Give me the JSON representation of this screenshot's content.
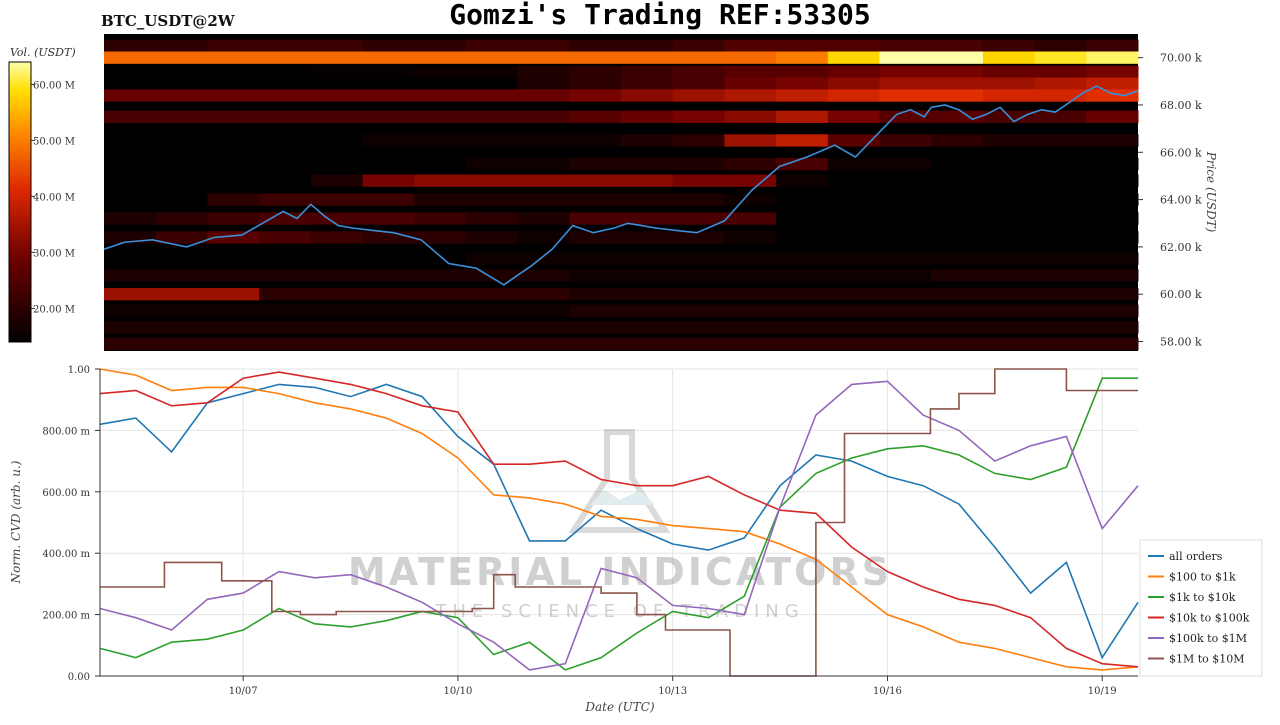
{
  "page": {
    "title": "Gomzi's Trading REF:53305",
    "symbol": "BTC_USDT@2W"
  },
  "watermark": {
    "brand": "MATERIAL INDICATORS",
    "tagline": "THE SCIENCE OF TRADING"
  },
  "colors": {
    "all_orders": "#1f77b4",
    "s100_1k": "#ff7f0e",
    "s1k_10k": "#2ca02c",
    "s10k_100k": "#d62728",
    "s100k_1m": "#9467bd",
    "s1m_10m": "#8c564b",
    "price_line": "#3a8fd8"
  },
  "chart_data": [
    {
      "type": "heatmap",
      "colorbar_label": "Vol. (USDT)",
      "colorbar_ticks": [
        "60.00 M",
        "50.00 M",
        "40.00 M",
        "30.00 M",
        "20.00 M"
      ],
      "colorbar_values": [
        60,
        50,
        40,
        30,
        20
      ],
      "colorbar_range": [
        14,
        64
      ],
      "ylabel": "Price (USDT)",
      "y_ticks": [
        "70.00 k",
        "68.00 k",
        "66.00 k",
        "64.00 k",
        "62.00 k",
        "60.00 k",
        "58.00 k"
      ],
      "y_tick_values": [
        70000,
        68000,
        66000,
        64000,
        62000,
        60000,
        58000
      ],
      "ylim": [
        57600,
        71000
      ],
      "xlim_days": [
        0,
        15
      ],
      "price_series": {
        "name": "price",
        "x_days": [
          0,
          0.3,
          0.7,
          1.2,
          1.6,
          2.0,
          2.3,
          2.6,
          2.8,
          3.0,
          3.2,
          3.4,
          3.6,
          3.9,
          4.2,
          4.6,
          5.0,
          5.4,
          5.8,
          6.2,
          6.5,
          6.8,
          7.1,
          7.4,
          7.6,
          7.8,
          8.0,
          8.3,
          8.6,
          9.0,
          9.4,
          9.8,
          10.2,
          10.6,
          10.9,
          11.1,
          11.3,
          11.5,
          11.7,
          11.9,
          12.0,
          12.2,
          12.4,
          12.6,
          12.8,
          13.0,
          13.2,
          13.4,
          13.6,
          13.8,
          14.0,
          14.2,
          14.4,
          14.6,
          14.8,
          15.0
        ],
        "price": [
          61900,
          62200,
          62300,
          62000,
          62400,
          62500,
          63000,
          63500,
          63200,
          63800,
          63300,
          62900,
          62800,
          62700,
          62600,
          62300,
          61300,
          61100,
          60400,
          61200,
          61900,
          62900,
          62600,
          62800,
          63000,
          62900,
          62800,
          62700,
          62600,
          63100,
          64400,
          65400,
          65800,
          66300,
          65800,
          66400,
          67000,
          67600,
          67800,
          67500,
          67900,
          68000,
          67800,
          67400,
          67600,
          67900,
          67300,
          67600,
          67800,
          67700,
          68100,
          68500,
          68800,
          68500,
          68400,
          68600
        ]
      },
      "bands": [
        {
          "price": 70500,
          "values": [
            20,
            20,
            22,
            22,
            22,
            20,
            20,
            22,
            22,
            20,
            20,
            22,
            25,
            25,
            25,
            24,
            24,
            22,
            20,
            22
          ]
        },
        {
          "price": 70000,
          "values": [
            48,
            48,
            48,
            48,
            48,
            48,
            48,
            48,
            48,
            48,
            48,
            48,
            48,
            50,
            58,
            64,
            64,
            58,
            60,
            62
          ]
        },
        {
          "price": 69400,
          "values": [
            14,
            14,
            14,
            14,
            15,
            15,
            16,
            16,
            18,
            20,
            22,
            24,
            26,
            26,
            28,
            30,
            30,
            28,
            28,
            30
          ]
        },
        {
          "price": 68900,
          "values": [
            14,
            14,
            14,
            14,
            14,
            14,
            14,
            14,
            18,
            20,
            22,
            24,
            28,
            30,
            32,
            34,
            34,
            34,
            36,
            38
          ]
        },
        {
          "price": 68400,
          "values": [
            28,
            28,
            28,
            28,
            28,
            28,
            28,
            28,
            28,
            30,
            32,
            34,
            36,
            38,
            40,
            42,
            42,
            40,
            40,
            42
          ]
        },
        {
          "price": 67500,
          "values": [
            24,
            24,
            24,
            24,
            24,
            24,
            24,
            24,
            24,
            26,
            28,
            30,
            32,
            36,
            30,
            26,
            26,
            24,
            24,
            28
          ]
        },
        {
          "price": 66500,
          "values": [
            14,
            14,
            14,
            14,
            14,
            16,
            16,
            16,
            16,
            16,
            18,
            20,
            34,
            38,
            26,
            22,
            20,
            18,
            18,
            18
          ]
        },
        {
          "price": 65500,
          "values": [
            14,
            14,
            14,
            14,
            14,
            14,
            14,
            16,
            16,
            18,
            18,
            18,
            20,
            24,
            16,
            16,
            14,
            14,
            14,
            14
          ]
        },
        {
          "price": 64800,
          "values": [
            14,
            14,
            14,
            14,
            18,
            30,
            32,
            32,
            32,
            32,
            32,
            30,
            30,
            16,
            14,
            14,
            14,
            14,
            14,
            14
          ]
        },
        {
          "price": 64000,
          "values": [
            14,
            14,
            20,
            22,
            22,
            22,
            18,
            18,
            18,
            18,
            18,
            18,
            16,
            14,
            14,
            14,
            14,
            14,
            14,
            14
          ]
        },
        {
          "price": 63200,
          "values": [
            18,
            20,
            22,
            24,
            24,
            24,
            22,
            20,
            18,
            24,
            24,
            24,
            24,
            14,
            14,
            14,
            14,
            14,
            14,
            14
          ]
        },
        {
          "price": 62400,
          "values": [
            18,
            22,
            26,
            24,
            22,
            20,
            20,
            18,
            16,
            18,
            18,
            18,
            16,
            14,
            14,
            14,
            14,
            14,
            14,
            14
          ]
        },
        {
          "price": 61500,
          "values": [
            14,
            14,
            14,
            14,
            14,
            14,
            14,
            16,
            16,
            16,
            16,
            16,
            16,
            16,
            16,
            16,
            16,
            16,
            16,
            16
          ]
        },
        {
          "price": 60800,
          "values": [
            18,
            18,
            18,
            18,
            18,
            18,
            18,
            18,
            18,
            16,
            16,
            16,
            16,
            16,
            16,
            16,
            18,
            18,
            18,
            18
          ]
        },
        {
          "price": 60000,
          "values": [
            34,
            34,
            34,
            20,
            20,
            20,
            20,
            20,
            20,
            18,
            18,
            18,
            18,
            18,
            18,
            18,
            18,
            18,
            18,
            18
          ]
        },
        {
          "price": 59300,
          "values": [
            16,
            16,
            16,
            16,
            16,
            16,
            16,
            16,
            16,
            18,
            18,
            18,
            18,
            18,
            18,
            18,
            18,
            18,
            18,
            18
          ]
        },
        {
          "price": 58600,
          "values": [
            18,
            18,
            18,
            18,
            18,
            18,
            18,
            18,
            18,
            18,
            18,
            18,
            18,
            18,
            18,
            18,
            18,
            18,
            18,
            18
          ]
        },
        {
          "price": 57900,
          "values": [
            20,
            20,
            20,
            20,
            20,
            20,
            20,
            20,
            20,
            20,
            20,
            20,
            20,
            20,
            20,
            20,
            20,
            20,
            20,
            20
          ]
        }
      ]
    },
    {
      "type": "line",
      "xlabel": "Date (UTC)",
      "ylabel": "Norm. CVD (arb. u.)",
      "x_tick_labels": [
        "10/07",
        "10/10",
        "10/13",
        "10/16",
        "10/19"
      ],
      "x_tick_days": [
        2,
        5,
        8,
        11,
        14
      ],
      "xlim_days": [
        0,
        14.5
      ],
      "y_ticks": [
        "1.00",
        "800.00 m",
        "600.00 m",
        "400.00 m",
        "200.00 m",
        "0.00"
      ],
      "y_tick_values": [
        1.0,
        0.8,
        0.6,
        0.4,
        0.2,
        0.0
      ],
      "ylim": [
        0,
        1.0
      ],
      "grid": true,
      "legend_position": "right-bottom",
      "series": [
        {
          "name": "all orders",
          "color_key": "all_orders",
          "x": [
            0,
            0.5,
            1,
            1.5,
            2,
            2.5,
            3,
            3.5,
            4,
            4.5,
            5,
            5.5,
            6,
            6.5,
            7,
            7.5,
            8,
            8.5,
            9,
            9.5,
            10,
            10.5,
            11,
            11.5,
            12,
            12.5,
            13,
            13.5,
            14,
            14.5
          ],
          "y": [
            0.82,
            0.84,
            0.73,
            0.89,
            0.92,
            0.95,
            0.94,
            0.91,
            0.95,
            0.91,
            0.78,
            0.69,
            0.44,
            0.44,
            0.54,
            0.48,
            0.43,
            0.41,
            0.45,
            0.62,
            0.72,
            0.7,
            0.65,
            0.62,
            0.56,
            0.42,
            0.27,
            0.37,
            0.06,
            0.24
          ]
        },
        {
          "name": "$100 to $1k",
          "color_key": "s100_1k",
          "x": [
            0,
            0.5,
            1,
            1.5,
            2,
            2.5,
            3,
            3.5,
            4,
            4.5,
            5,
            5.5,
            6,
            6.5,
            7,
            7.5,
            8,
            8.5,
            9,
            9.5,
            10,
            10.5,
            11,
            11.5,
            12,
            12.5,
            13,
            13.5,
            14,
            14.5
          ],
          "y": [
            1.0,
            0.98,
            0.93,
            0.94,
            0.94,
            0.92,
            0.89,
            0.87,
            0.84,
            0.79,
            0.71,
            0.59,
            0.58,
            0.56,
            0.52,
            0.51,
            0.49,
            0.48,
            0.47,
            0.43,
            0.38,
            0.29,
            0.2,
            0.16,
            0.11,
            0.09,
            0.06,
            0.03,
            0.02,
            0.03
          ]
        },
        {
          "name": "$1k to $10k",
          "color_key": "s1k_10k",
          "x": [
            0,
            0.5,
            1,
            1.5,
            2,
            2.5,
            3,
            3.5,
            4,
            4.5,
            5,
            5.5,
            6,
            6.5,
            7,
            7.5,
            8,
            8.5,
            9,
            9.5,
            10,
            10.5,
            11,
            11.5,
            12,
            12.5,
            13,
            13.5,
            14,
            14.5
          ],
          "y": [
            0.09,
            0.06,
            0.11,
            0.12,
            0.15,
            0.22,
            0.17,
            0.16,
            0.18,
            0.21,
            0.19,
            0.07,
            0.11,
            0.02,
            0.06,
            0.14,
            0.21,
            0.19,
            0.26,
            0.55,
            0.66,
            0.71,
            0.74,
            0.75,
            0.72,
            0.66,
            0.64,
            0.68,
            0.97,
            0.97
          ]
        },
        {
          "name": "$10k to $100k",
          "color_key": "s10k_100k",
          "x": [
            0,
            0.5,
            1,
            1.5,
            2,
            2.5,
            3,
            3.5,
            4,
            4.5,
            5,
            5.5,
            6,
            6.5,
            7,
            7.5,
            8,
            8.5,
            9,
            9.5,
            10,
            10.5,
            11,
            11.5,
            12,
            12.5,
            13,
            13.5,
            14,
            14.5
          ],
          "y": [
            0.92,
            0.93,
            0.88,
            0.89,
            0.97,
            0.99,
            0.97,
            0.95,
            0.92,
            0.88,
            0.86,
            0.69,
            0.69,
            0.7,
            0.64,
            0.62,
            0.62,
            0.65,
            0.59,
            0.54,
            0.53,
            0.42,
            0.34,
            0.29,
            0.25,
            0.23,
            0.19,
            0.09,
            0.04,
            0.03
          ]
        },
        {
          "name": "$100k to $1M",
          "color_key": "s100k_1m",
          "x": [
            0,
            0.5,
            1,
            1.5,
            2,
            2.5,
            3,
            3.5,
            4,
            4.5,
            5,
            5.5,
            6,
            6.5,
            7,
            7.5,
            8,
            8.5,
            9,
            9.5,
            10,
            10.5,
            11,
            11.5,
            12,
            12.5,
            13,
            13.5,
            14,
            14.5
          ],
          "y": [
            0.22,
            0.19,
            0.15,
            0.25,
            0.27,
            0.34,
            0.32,
            0.33,
            0.29,
            0.24,
            0.17,
            0.11,
            0.02,
            0.04,
            0.35,
            0.32,
            0.23,
            0.22,
            0.2,
            0.55,
            0.85,
            0.95,
            0.96,
            0.85,
            0.8,
            0.7,
            0.75,
            0.78,
            0.48,
            0.62
          ]
        },
        {
          "name": "$1M to $10M",
          "color_key": "s1m_10m",
          "x": [
            0,
            0.5,
            0.9,
            1.3,
            1.7,
            2.1,
            2.4,
            2.8,
            3.3,
            3.8,
            4.3,
            4.8,
            5.2,
            5.5,
            5.8,
            6.2,
            6.6,
            7.0,
            7.5,
            7.9,
            8.3,
            8.8,
            9.2,
            9.6,
            10.0,
            10.4,
            10.8,
            11.2,
            11.6,
            12.0,
            12.5,
            13.0,
            13.5,
            14.0,
            14.5
          ],
          "y": [
            0.29,
            0.29,
            0.37,
            0.37,
            0.31,
            0.31,
            0.21,
            0.2,
            0.21,
            0.21,
            0.21,
            0.21,
            0.22,
            0.33,
            0.29,
            0.29,
            0.29,
            0.27,
            0.2,
            0.15,
            0.15,
            0.0,
            0.0,
            0.0,
            0.5,
            0.79,
            0.79,
            0.79,
            0.87,
            0.92,
            1.0,
            1.0,
            0.93,
            0.93,
            0.93
          ]
        }
      ]
    }
  ]
}
